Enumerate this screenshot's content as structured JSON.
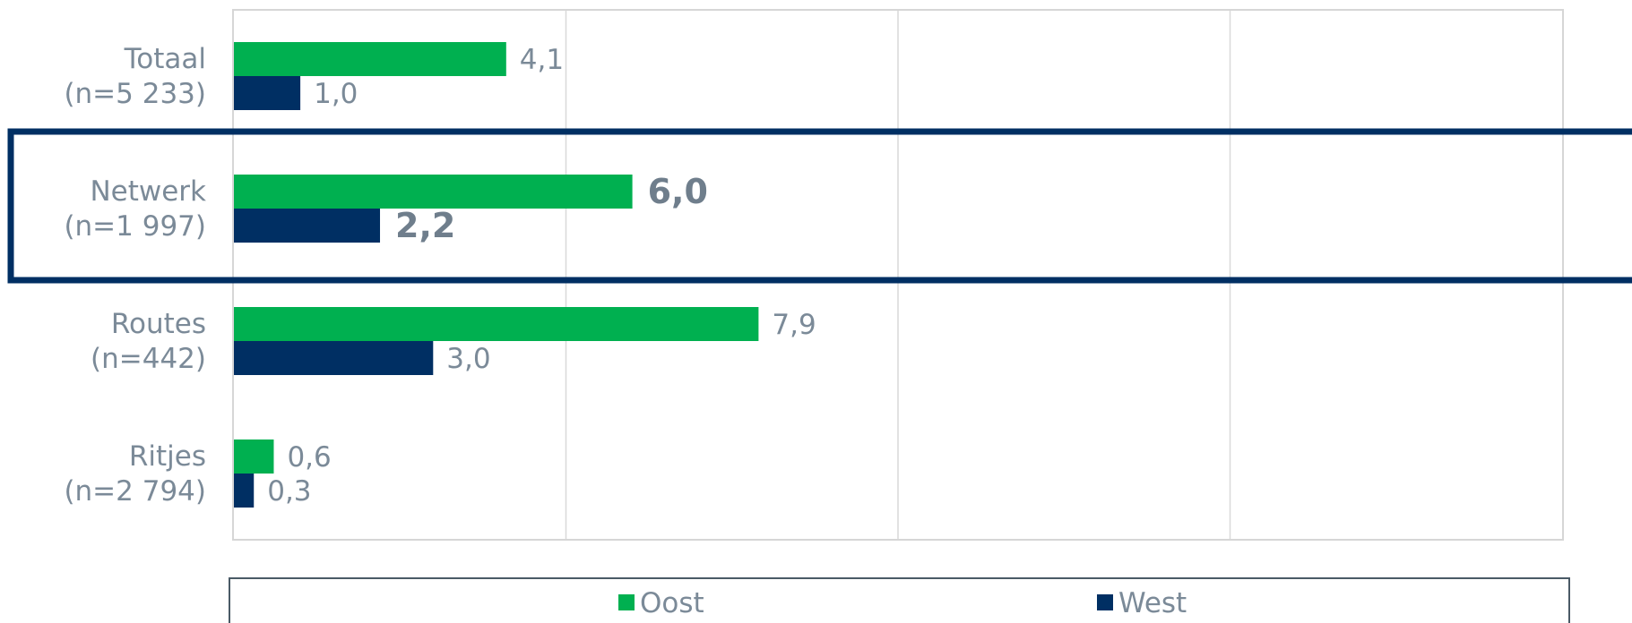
{
  "chart_data": {
    "type": "bar",
    "orientation": "horizontal",
    "categories": [
      "Totaal (n=5 233)",
      "Netwerk (n=1 997)",
      "Routes (n=442)",
      "Ritjes (n=2 794)"
    ],
    "category_lines": [
      [
        "Totaal",
        "(n=5 233)"
      ],
      [
        "Netwerk",
        "(n=1 997)"
      ],
      [
        "Routes",
        "(n=442)"
      ],
      [
        "Ritjes",
        "(n=2 794)"
      ]
    ],
    "series": [
      {
        "name": "Oost",
        "color": "#00b050",
        "values": [
          4.1,
          6.0,
          7.9,
          0.6
        ],
        "labels": [
          "4,1",
          "6,0",
          "7,9",
          "0,6"
        ]
      },
      {
        "name": "West",
        "color": "#002f63",
        "values": [
          1.0,
          2.2,
          3.0,
          0.3
        ],
        "labels": [
          "1,0",
          "2,2",
          "3,0",
          "0,3"
        ]
      }
    ],
    "xlim": [
      0,
      20
    ],
    "grid": true,
    "legend": "bottom",
    "highlighted_category": "Netwerk (n=1 997)",
    "highlight_color": "#002f63"
  }
}
